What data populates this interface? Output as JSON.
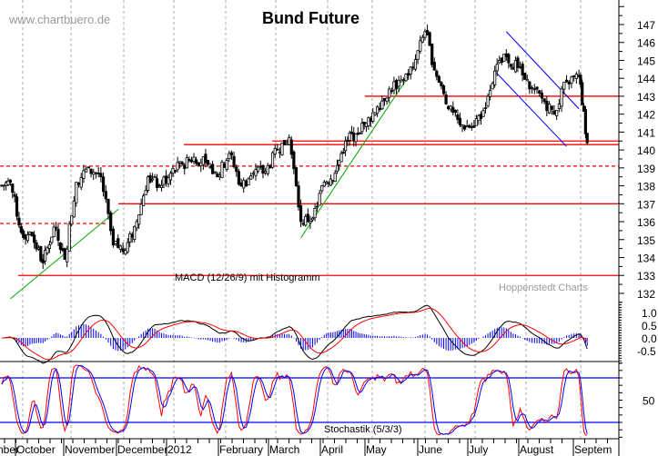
{
  "chart_data": {
    "type": "candlestick",
    "title": "Bund Future",
    "watermark": "www.chartbuero.de",
    "source": "Hoppenstedt Charts",
    "price_axis": {
      "range": [
        131.5,
        148
      ],
      "ticks": [
        "147",
        "146",
        "145",
        "144",
        "143",
        "142",
        "141",
        "140",
        "139",
        "138",
        "137",
        "136",
        "135",
        "134",
        "133",
        "132"
      ]
    },
    "x_tick_labels": [
      "nber",
      "October",
      "November",
      "December",
      "2012",
      "February",
      "March",
      "April",
      "May",
      "June",
      "July",
      "August",
      "Septem"
    ],
    "grid": "vertical dashed at month starts",
    "weekly_closes": [
      [
        "2011-09-16",
        138.0
      ],
      [
        "2011-09-23",
        138.2
      ],
      [
        "2011-09-30",
        135.4
      ],
      [
        "2011-10-07",
        135.2
      ],
      [
        "2011-10-14",
        133.7
      ],
      [
        "2011-10-21",
        135.7
      ],
      [
        "2011-10-28",
        133.9
      ],
      [
        "2011-11-04",
        138.2
      ],
      [
        "2011-11-11",
        139.0
      ],
      [
        "2011-11-18",
        138.5
      ],
      [
        "2011-11-25",
        134.7
      ],
      [
        "2011-12-02",
        134.4
      ],
      [
        "2011-12-09",
        136.0
      ],
      [
        "2011-12-16",
        138.5
      ],
      [
        "2011-12-23",
        138.0
      ],
      [
        "2011-12-30",
        138.7
      ],
      [
        "2012-01-06",
        139.2
      ],
      [
        "2012-01-13",
        139.6
      ],
      [
        "2012-01-20",
        139.3
      ],
      [
        "2012-01-27",
        138.5
      ],
      [
        "2012-02-03",
        139.8
      ],
      [
        "2012-02-10",
        138.0
      ],
      [
        "2012-02-17",
        138.7
      ],
      [
        "2012-02-24",
        138.8
      ],
      [
        "2012-03-02",
        140.0
      ],
      [
        "2012-03-09",
        140.7
      ],
      [
        "2012-03-16",
        136.0
      ],
      [
        "2012-03-23",
        136.2
      ],
      [
        "2012-03-30",
        138.2
      ],
      [
        "2012-04-06",
        138.7
      ],
      [
        "2012-04-13",
        140.5
      ],
      [
        "2012-04-20",
        140.9
      ],
      [
        "2012-04-27",
        141.5
      ],
      [
        "2012-05-04",
        142.4
      ],
      [
        "2012-05-11",
        143.4
      ],
      [
        "2012-05-18",
        143.9
      ],
      [
        "2012-05-25",
        144.6
      ],
      [
        "2012-06-01",
        146.6
      ],
      [
        "2012-06-08",
        144.1
      ],
      [
        "2012-06-15",
        142.3
      ],
      [
        "2012-06-22",
        141.4
      ],
      [
        "2012-06-29",
        141.3
      ],
      [
        "2012-07-06",
        142.2
      ],
      [
        "2012-07-13",
        144.4
      ],
      [
        "2012-07-20",
        145.2
      ],
      [
        "2012-07-27",
        144.6
      ],
      [
        "2012-08-03",
        143.4
      ],
      [
        "2012-08-10",
        142.9
      ],
      [
        "2012-08-17",
        142.0
      ],
      [
        "2012-08-24",
        143.8
      ],
      [
        "2012-08-31",
        144.1
      ],
      [
        "2012-09-05",
        140.4
      ]
    ],
    "horizontal_levels": [
      {
        "price": 143.0,
        "from": "2012-04-26",
        "color": "#ff0000",
        "style": "solid"
      },
      {
        "price": 140.5,
        "from": "2012-02-28",
        "color": "#ff0000",
        "style": "solid"
      },
      {
        "price": 140.3,
        "from": "2012-01-07",
        "color": "#ff0000",
        "style": "solid"
      },
      {
        "price": 137.0,
        "from": "2011-11-28",
        "color": "#ff0000",
        "style": "solid"
      },
      {
        "price": 133.0,
        "from": "2011-09-28",
        "color": "#ff0000",
        "style": "solid"
      },
      {
        "price": 139.1,
        "from": "2011-09-16",
        "color": "#ff0000",
        "style": "dashed"
      },
      {
        "price": 135.9,
        "from": "2011-09-16",
        "to": "2011-11-22",
        "color": "#ff0000",
        "style": "dashed"
      }
    ],
    "trendlines": [
      {
        "from": [
          "2011-09-23",
          131.7
        ],
        "to": [
          "2011-11-28",
          136.7
        ],
        "color": "#00aa00"
      },
      {
        "from": [
          "2012-03-16",
          135.1
        ],
        "to": [
          "2012-05-25",
          144.5
        ],
        "color": "#00aa00"
      },
      {
        "from": [
          "2012-07-20",
          146.6
        ],
        "to": [
          "2012-08-31",
          142.3
        ],
        "color": "#0000ff"
      },
      {
        "from": [
          "2012-07-14",
          144.3
        ],
        "to": [
          "2012-08-24",
          140.2
        ],
        "color": "#0000ff"
      }
    ],
    "macd": {
      "label": "MACD (12/26/9) mit Histogramm",
      "ticks": [
        "1.0",
        "0.5",
        "0.0",
        "-0.5"
      ],
      "range": [
        -1.0,
        1.5
      ],
      "colors": {
        "macd": "#000000",
        "signal": "#ff0000",
        "histogram": "#0000ff"
      }
    },
    "stochastic": {
      "label": "Stochastik (5/3/3)",
      "ticks": [
        "50"
      ],
      "levels": [
        80,
        20
      ],
      "colors": {
        "k": "#ff0000",
        "d": "#0000ff",
        "levels": "#0000ff"
      }
    }
  }
}
